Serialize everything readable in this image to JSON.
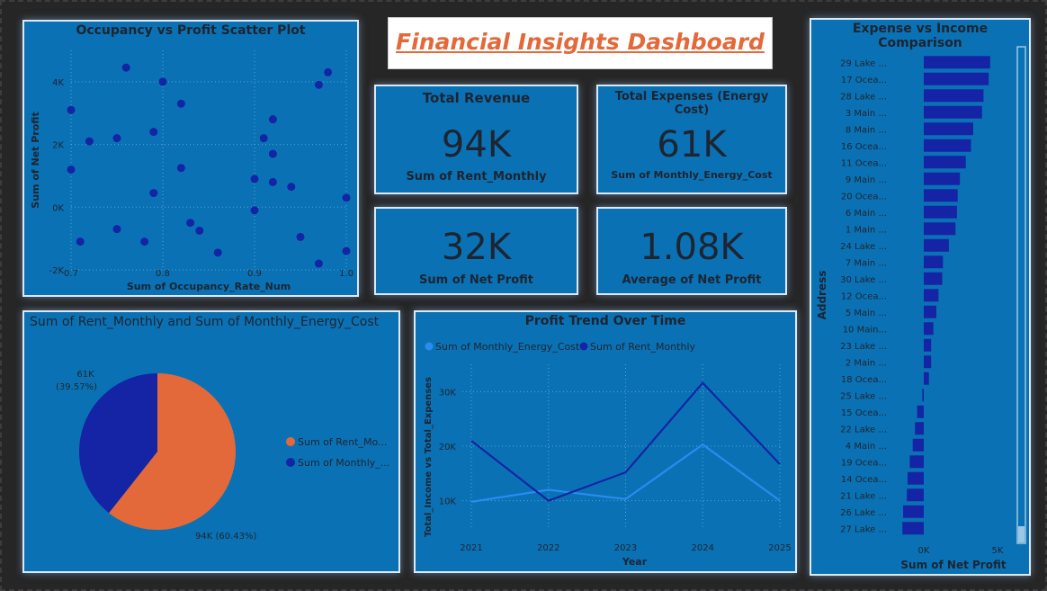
{
  "dashboard_title": "Financial Insights Dashboard",
  "colors": {
    "panel": "#0a72b4",
    "dark_series": "#1424a4",
    "light_series": "#2a8bf0",
    "orange": "#e4693a",
    "title": "#e4693a"
  },
  "kpis": [
    {
      "title": "Total Revenue",
      "value": "94K",
      "label": "Sum of Rent_Monthly"
    },
    {
      "title": "Total Expenses (Energy Cost)",
      "value": "61K",
      "label": "Sum of Monthly_Energy_Cost"
    },
    {
      "title": "",
      "value": "32K",
      "label": "Sum of Net Profit"
    },
    {
      "title": "",
      "value": "1.08K",
      "label": "Average of Net Profit"
    }
  ],
  "chart_data": [
    {
      "type": "scatter",
      "title": "Occupancy vs Profit Scatter Plot",
      "xlabel": "Sum of Occupancy_Rate_Num",
      "ylabel": "Sum of Net Profit",
      "xlim": [
        0.7,
        1.0
      ],
      "ylim": [
        -2000,
        5000
      ],
      "xticks": [
        0.7,
        0.8,
        0.9,
        1.0
      ],
      "xtick_labels": [
        "0.7",
        "0.8",
        "0.9",
        "1.0"
      ],
      "yticks": [
        -2000,
        0,
        2000,
        4000
      ],
      "ytick_labels": [
        "-2K",
        "0K",
        "2K",
        "4K"
      ],
      "points": [
        {
          "x": 0.7,
          "y": 3100
        },
        {
          "x": 0.7,
          "y": 1200
        },
        {
          "x": 0.71,
          "y": -1100
        },
        {
          "x": 0.72,
          "y": 2100
        },
        {
          "x": 0.75,
          "y": 2200
        },
        {
          "x": 0.75,
          "y": -700
        },
        {
          "x": 0.76,
          "y": 4450
        },
        {
          "x": 0.78,
          "y": -1100
        },
        {
          "x": 0.79,
          "y": 2400
        },
        {
          "x": 0.79,
          "y": 450
        },
        {
          "x": 0.8,
          "y": 4000
        },
        {
          "x": 0.82,
          "y": 3300
        },
        {
          "x": 0.82,
          "y": 1250
        },
        {
          "x": 0.83,
          "y": -500
        },
        {
          "x": 0.84,
          "y": -750
        },
        {
          "x": 0.86,
          "y": -1450
        },
        {
          "x": 0.9,
          "y": 900
        },
        {
          "x": 0.9,
          "y": -100
        },
        {
          "x": 0.91,
          "y": 2200
        },
        {
          "x": 0.92,
          "y": 2800
        },
        {
          "x": 0.92,
          "y": 1700
        },
        {
          "x": 0.92,
          "y": 800
        },
        {
          "x": 0.94,
          "y": 650
        },
        {
          "x": 0.95,
          "y": -950
        },
        {
          "x": 0.97,
          "y": 3900
        },
        {
          "x": 0.97,
          "y": -1800
        },
        {
          "x": 0.98,
          "y": 4300
        },
        {
          "x": 1.0,
          "y": 300
        },
        {
          "x": 1.0,
          "y": -1400
        }
      ]
    },
    {
      "type": "pie",
      "title": "Sum of Rent_Monthly and Sum of Monthly_Energy_Cost",
      "slices": [
        {
          "name": "Sum of Rent_Monthly",
          "legend": "Sum of Rent_Mo...",
          "value": 94,
          "percent": 60.43,
          "label": "94K (60.43%)"
        },
        {
          "name": "Sum of Monthly_Energy_Cost",
          "legend": "Sum of Monthly_...",
          "value": 61,
          "percent": 39.57,
          "label_line1": "61K",
          "label_line2": "(39.57%)"
        }
      ]
    },
    {
      "type": "line",
      "title": "Profit Trend Over Time",
      "xlabel": "Year",
      "ylabel": "Total_Income vs Total_Expenses",
      "x": [
        "2021",
        "2022",
        "2023",
        "2024",
        "2025"
      ],
      "ylim": [
        5000,
        35000
      ],
      "yticks": [
        10000,
        20000,
        30000
      ],
      "ytick_labels": [
        "10K",
        "20K",
        "30K"
      ],
      "series": [
        {
          "name": "Sum of Monthly_Energy_Cost",
          "values": [
            9800,
            12000,
            10300,
            20300,
            10000
          ]
        },
        {
          "name": "Sum of Rent_Monthly",
          "values": [
            21000,
            10000,
            15200,
            31600,
            16700
          ]
        }
      ]
    },
    {
      "type": "bar",
      "orientation": "horizontal",
      "title": "Expense vs Income Comparison",
      "xlabel": "Sum of Net Profit",
      "ylabel": "Address",
      "xlim": [
        -2000,
        6000
      ],
      "xticks": [
        0,
        5000
      ],
      "xtick_labels": [
        "0K",
        "5K"
      ],
      "categories": [
        "29 Lake ...",
        "17 Ocea...",
        "28 Lake ...",
        "3 Main ...",
        "8 Main ...",
        "16 Ocea...",
        "11 Ocea...",
        "9 Main ...",
        "20 Ocea...",
        "6 Main ...",
        "1 Main ...",
        "24 Lake ...",
        "7 Main ...",
        "30 Lake ...",
        "12 Ocea...",
        "5 Main ...",
        "10 Main...",
        "23 Lake ...",
        "2 Main ...",
        "18 Ocea...",
        "25 Lake ...",
        "15 Ocea...",
        "22 Lake ...",
        "4 Main ...",
        "19 Ocea...",
        "14 Ocea...",
        "21 Lake ...",
        "26 Lake ...",
        "27 Lake ..."
      ],
      "values": [
        4500,
        4400,
        4050,
        3950,
        3350,
        3200,
        2850,
        2450,
        2300,
        2250,
        2150,
        1700,
        1300,
        1250,
        1000,
        850,
        650,
        500,
        500,
        350,
        -100,
        -450,
        -600,
        -750,
        -950,
        -1100,
        -1150,
        -1400,
        -1450
      ]
    }
  ]
}
